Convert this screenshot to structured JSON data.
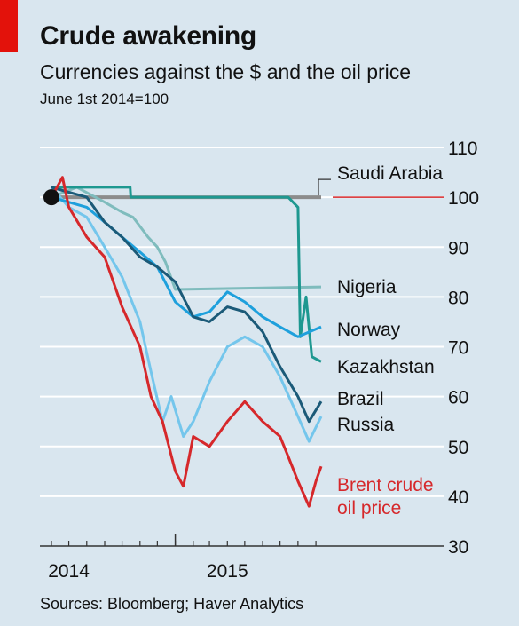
{
  "title": "Crude awakening",
  "subtitle": "Currencies against the $ and the oil price",
  "unit_note": "June 1st 2014=100",
  "source": "Sources: Bloomberg; Haver Analytics",
  "chart_data": {
    "type": "line",
    "ylim": [
      30,
      110
    ],
    "y_ticks": [
      30,
      40,
      50,
      60,
      70,
      80,
      90,
      100,
      110
    ],
    "y_tick_labels": [
      "30",
      "40",
      "50",
      "60",
      "70",
      "80",
      "90",
      "100",
      "110"
    ],
    "x_range": [
      "2014-06-01",
      "2015-09-30"
    ],
    "x_tick_labels": [
      {
        "label": "2014",
        "date": "2014-07-01"
      },
      {
        "label": "2015",
        "date": "2015-04-01"
      }
    ],
    "reference_value": 100,
    "series": [
      {
        "name": "Saudi Arabia",
        "color": "#8c8c8c",
        "x": [
          "2014-06-01",
          "2015-09-10"
        ],
        "y": [
          100,
          100
        ]
      },
      {
        "name": "Nigeria",
        "color": "#7fbcbd",
        "x": [
          "2014-06-01",
          "2014-07-15",
          "2014-09-01",
          "2014-10-01",
          "2014-10-20",
          "2014-11-15",
          "2014-12-01",
          "2014-12-15",
          "2015-01-01",
          "2015-09-10"
        ],
        "y": [
          100,
          102,
          99,
          97,
          96,
          92,
          90,
          87,
          81.5,
          82
        ]
      },
      {
        "name": "Norway",
        "color": "#1ea0dc",
        "x": [
          "2014-06-01",
          "2014-07-01",
          "2014-08-01",
          "2014-09-01",
          "2014-10-01",
          "2014-11-01",
          "2014-12-01",
          "2015-01-01",
          "2015-02-01",
          "2015-03-01",
          "2015-04-01",
          "2015-05-01",
          "2015-06-01",
          "2015-07-01",
          "2015-08-01",
          "2015-09-10"
        ],
        "y": [
          100,
          99,
          98,
          95,
          92,
          89,
          86,
          79,
          76,
          77,
          81,
          79,
          76,
          74,
          72,
          74
        ]
      },
      {
        "name": "Kazakhstan",
        "color": "#1e9890",
        "x": [
          "2014-06-01",
          "2014-10-15",
          "2014-10-16",
          "2015-07-15",
          "2015-08-01",
          "2015-08-05",
          "2015-08-15",
          "2015-08-25",
          "2015-09-10"
        ],
        "y": [
          102,
          102,
          100,
          100,
          98,
          72,
          80,
          68,
          67
        ]
      },
      {
        "name": "Brazil",
        "color": "#1b5a78",
        "x": [
          "2014-06-01",
          "2014-07-01",
          "2014-08-01",
          "2014-09-01",
          "2014-10-01",
          "2014-11-01",
          "2014-12-01",
          "2015-01-01",
          "2015-02-01",
          "2015-03-01",
          "2015-04-01",
          "2015-05-01",
          "2015-06-01",
          "2015-07-01",
          "2015-08-01",
          "2015-08-20",
          "2015-09-10"
        ],
        "y": [
          102,
          101,
          100,
          95,
          92,
          88,
          86,
          83,
          76,
          75,
          78,
          77,
          73,
          66,
          60,
          55,
          59
        ]
      },
      {
        "name": "Russia",
        "color": "#74c6ec",
        "x": [
          "2014-06-01",
          "2014-07-01",
          "2014-08-01",
          "2014-09-01",
          "2014-10-01",
          "2014-11-01",
          "2014-11-20",
          "2014-12-10",
          "2014-12-25",
          "2015-01-15",
          "2015-02-01",
          "2015-03-01",
          "2015-04-01",
          "2015-05-01",
          "2015-06-01",
          "2015-07-01",
          "2015-08-01",
          "2015-08-20",
          "2015-09-10"
        ],
        "y": [
          102,
          98,
          96,
          90,
          84,
          75,
          65,
          55,
          60,
          52,
          55,
          63,
          70,
          72,
          70,
          64,
          56,
          51,
          56
        ]
      },
      {
        "name": "Brent crude oil price",
        "color": "#d6282b",
        "x": [
          "2014-06-01",
          "2014-06-20",
          "2014-07-01",
          "2014-08-01",
          "2014-09-01",
          "2014-10-01",
          "2014-11-01",
          "2014-11-20",
          "2014-12-10",
          "2015-01-01",
          "2015-01-15",
          "2015-02-01",
          "2015-03-01",
          "2015-04-01",
          "2015-05-01",
          "2015-06-01",
          "2015-07-01",
          "2015-07-15",
          "2015-08-01",
          "2015-08-20",
          "2015-09-01",
          "2015-09-10"
        ],
        "y": [
          100,
          104,
          98,
          92,
          88,
          78,
          70,
          60,
          55,
          45,
          42,
          52,
          50,
          55,
          59,
          55,
          52,
          48,
          43,
          38,
          43,
          46
        ]
      }
    ],
    "grid": true,
    "legend": "direct labels at line ends"
  },
  "labels": {
    "saudi": "Saudi Arabia",
    "nigeria": "Nigeria",
    "norway": "Norway",
    "kazakhstan": "Kazakhstan",
    "brazil": "Brazil",
    "russia": "Russia",
    "brent_line1": "Brent crude",
    "brent_line2": "oil price"
  }
}
